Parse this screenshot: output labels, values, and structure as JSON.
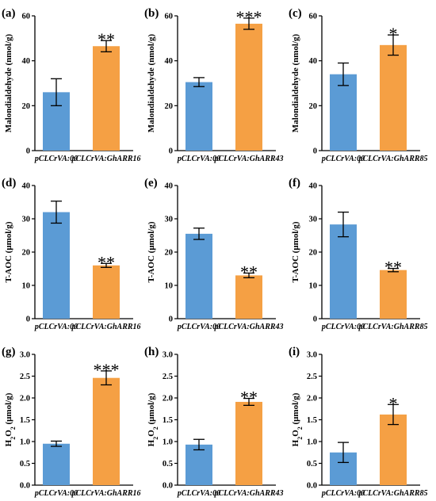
{
  "colors": {
    "control": "#5b9bd5",
    "treatment": "#f5a044",
    "axis": "#000000"
  },
  "chart_data": [
    {
      "id": "a",
      "panel_label": "(a)",
      "type": "bar",
      "ylabel": "Malondialdehyde (nmol/g)",
      "ylim": [
        0,
        60
      ],
      "yticks": [
        "0",
        "20",
        "40",
        "60"
      ],
      "categories": [
        "pCLCrVA:00",
        "pCLCrVA:GhARR16"
      ],
      "values": [
        26,
        46.5
      ],
      "errors": [
        6,
        2.5
      ],
      "significance": [
        "",
        "**"
      ]
    },
    {
      "id": "b",
      "panel_label": "(b)",
      "type": "bar",
      "ylabel": "Malondialdehyde (nmol/g)",
      "ylim": [
        0,
        60
      ],
      "yticks": [
        "0",
        "20",
        "40",
        "60"
      ],
      "categories": [
        "pCLCrVA:00",
        "pCLCrVA:GhARR43"
      ],
      "values": [
        30.5,
        56.5
      ],
      "errors": [
        2,
        2.5
      ],
      "significance": [
        "",
        "***"
      ]
    },
    {
      "id": "c",
      "panel_label": "(c)",
      "type": "bar",
      "ylabel": "Malondialdehyde (nmol/g)",
      "ylim": [
        0,
        60
      ],
      "yticks": [
        "0",
        "20",
        "40",
        "60"
      ],
      "categories": [
        "pCLCrVA:00",
        "pCLCrVA:GhARR85"
      ],
      "values": [
        34,
        47
      ],
      "errors": [
        5,
        4.5
      ],
      "significance": [
        "",
        "*"
      ]
    },
    {
      "id": "d",
      "panel_label": "(d)",
      "type": "bar",
      "ylabel": "T-AOC (μmol/g)",
      "ylim": [
        0,
        40
      ],
      "yticks": [
        "0",
        "10",
        "20",
        "30",
        "40"
      ],
      "categories": [
        "pCLCrVA:00",
        "pCLCrVA:GhARR16"
      ],
      "values": [
        32,
        16
      ],
      "errors": [
        3.3,
        0.6
      ],
      "significance": [
        "",
        "**"
      ]
    },
    {
      "id": "e",
      "panel_label": "(e)",
      "type": "bar",
      "ylabel": "T-AOC (μmol/g)",
      "ylim": [
        0,
        40
      ],
      "yticks": [
        "0",
        "10",
        "20",
        "30",
        "40"
      ],
      "categories": [
        "pCLCrVA:00",
        "pCLCrVA:GhARR43"
      ],
      "values": [
        25.5,
        13
      ],
      "errors": [
        1.7,
        0.7
      ],
      "significance": [
        "",
        "**"
      ]
    },
    {
      "id": "f",
      "panel_label": "(f)",
      "type": "bar",
      "ylabel": "T-AOC (μmol/g)",
      "ylim": [
        0,
        40
      ],
      "yticks": [
        "0",
        "10",
        "20",
        "30",
        "40"
      ],
      "categories": [
        "pCLCrVA:00",
        "pCLCrVA:GhARR85"
      ],
      "values": [
        28.3,
        14.6
      ],
      "errors": [
        3.7,
        0.5
      ],
      "significance": [
        "",
        "**"
      ]
    },
    {
      "id": "g",
      "panel_label": "(g)",
      "type": "bar",
      "ylabel": "H2O2 (μmol/g)",
      "ylim": [
        0,
        3.0
      ],
      "yticks": [
        "0.0",
        "0.5",
        "1.0",
        "1.5",
        "2.0",
        "2.5",
        "3.0"
      ],
      "categories": [
        "pCLCrVA:00",
        "pCLCrVA:GhARR16"
      ],
      "values": [
        0.95,
        2.46
      ],
      "errors": [
        0.06,
        0.16
      ],
      "significance": [
        "",
        "***"
      ]
    },
    {
      "id": "h",
      "panel_label": "(h)",
      "type": "bar",
      "ylabel": "H2O2 (μmol/g)",
      "ylim": [
        0,
        3.0
      ],
      "yticks": [
        "0.0",
        "0.5",
        "1.0",
        "1.5",
        "2.0",
        "2.5",
        "3.0"
      ],
      "categories": [
        "pCLCrVA:00",
        "pCLCrVA:GhARR43"
      ],
      "values": [
        0.93,
        1.91
      ],
      "errors": [
        0.12,
        0.08
      ],
      "significance": [
        "",
        "**"
      ]
    },
    {
      "id": "i",
      "panel_label": "(i)",
      "type": "bar",
      "ylabel": "H2O2 (μmol/g)",
      "ylim": [
        0,
        3.0
      ],
      "yticks": [
        "0.0",
        "0.5",
        "1.0",
        "1.5",
        "2.0",
        "2.5",
        "3.0"
      ],
      "categories": [
        "pCLCrVA:00",
        "pCLCrVA:GhARR85"
      ],
      "values": [
        0.75,
        1.62
      ],
      "errors": [
        0.23,
        0.23
      ],
      "significance": [
        "",
        "*"
      ]
    }
  ]
}
